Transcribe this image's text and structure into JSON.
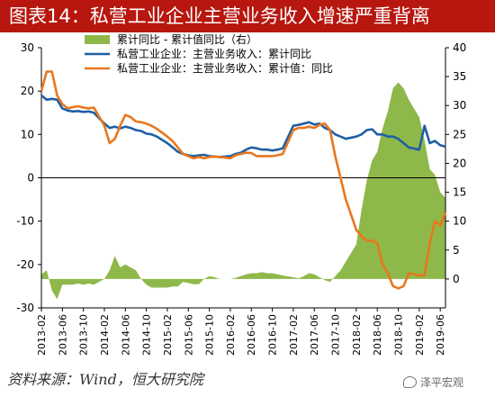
{
  "title": "图表14：私营工业企业主营业务收入增速严重背离",
  "source": "资料来源：Wind，恒大研究院",
  "watermark": "泽平宏观",
  "chart_data": {
    "type": "line",
    "title": "图表14：私营工业企业主营业务收入增速严重背离",
    "left_axis": {
      "ylim": [
        -30,
        30
      ],
      "ticks": [
        -30,
        -20,
        -10,
        0,
        10,
        20,
        30
      ]
    },
    "right_axis": {
      "ylim": [
        -5,
        40
      ],
      "ticks": [
        0,
        5,
        10,
        15,
        20,
        25,
        30,
        35,
        40
      ]
    },
    "x_tick_labels": [
      "2013-02",
      "2013-06",
      "2013-10",
      "2014-02",
      "2014-06",
      "2014-10",
      "2015-02",
      "2015-06",
      "2015-10",
      "2016-02",
      "2016-06",
      "2016-10",
      "2017-02",
      "2017-06",
      "2017-10",
      "2018-02",
      "2018-06",
      "2018-10",
      "2019-02",
      "2019-06"
    ],
    "x_start": "2013-02",
    "x_end": "2019-07",
    "series": [
      {
        "name": "累计同比 - 累计值同比（右）",
        "kind": "area",
        "axis": "right",
        "color": "#8fb84a",
        "points": [
          [
            "2013-02",
            0.8
          ],
          [
            "2013-03",
            1.5
          ],
          [
            "2013-04",
            -2
          ],
          [
            "2013-05",
            -3.5
          ],
          [
            "2013-06",
            -1
          ],
          [
            "2013-07",
            -1
          ],
          [
            "2013-08",
            -1
          ],
          [
            "2013-09",
            -0.8
          ],
          [
            "2013-10",
            -1
          ],
          [
            "2013-11",
            -0.8
          ],
          [
            "2013-12",
            -1
          ],
          [
            "2014-02",
            0
          ],
          [
            "2014-03",
            1.5
          ],
          [
            "2014-04",
            4
          ],
          [
            "2014-05",
            2
          ],
          [
            "2014-06",
            2.5
          ],
          [
            "2014-07",
            2
          ],
          [
            "2014-08",
            1.5
          ],
          [
            "2014-09",
            0
          ],
          [
            "2014-10",
            -1
          ],
          [
            "2014-11",
            -1.5
          ],
          [
            "2014-12",
            -1.5
          ],
          [
            "2015-02",
            -1.5
          ],
          [
            "2015-03",
            -1.3
          ],
          [
            "2015-04",
            -1.3
          ],
          [
            "2015-05",
            -0.5
          ],
          [
            "2015-06",
            -0.7
          ],
          [
            "2015-07",
            -0.9
          ],
          [
            "2015-08",
            -0.9
          ],
          [
            "2015-09",
            0
          ],
          [
            "2015-10",
            0.5
          ],
          [
            "2015-11",
            0.3
          ],
          [
            "2015-12",
            0
          ],
          [
            "2016-02",
            0
          ],
          [
            "2016-03",
            0.2
          ],
          [
            "2016-04",
            0.5
          ],
          [
            "2016-05",
            0.8
          ],
          [
            "2016-06",
            1
          ],
          [
            "2016-07",
            1
          ],
          [
            "2016-08",
            1.2
          ],
          [
            "2016-09",
            1
          ],
          [
            "2016-10",
            1
          ],
          [
            "2016-11",
            0.8
          ],
          [
            "2016-12",
            0.6
          ],
          [
            "2017-02",
            0.3
          ],
          [
            "2017-03",
            0.1
          ],
          [
            "2017-04",
            0.5
          ],
          [
            "2017-05",
            1
          ],
          [
            "2017-06",
            0.8
          ],
          [
            "2017-07",
            0.3
          ],
          [
            "2017-08",
            -0.2
          ],
          [
            "2017-09",
            -0.5
          ],
          [
            "2017-10",
            0.5
          ],
          [
            "2017-11",
            1.5
          ],
          [
            "2017-12",
            3
          ],
          [
            "2018-02",
            6
          ],
          [
            "2018-03",
            12
          ],
          [
            "2018-04",
            17
          ],
          [
            "2018-05",
            20.5
          ],
          [
            "2018-06",
            22
          ],
          [
            "2018-07",
            26
          ],
          [
            "2018-08",
            29
          ],
          [
            "2018-09",
            33
          ],
          [
            "2018-10",
            34
          ],
          [
            "2018-11",
            33
          ],
          [
            "2018-12",
            31
          ],
          [
            "2019-02",
            28
          ],
          [
            "2019-03",
            24
          ],
          [
            "2019-04",
            19
          ],
          [
            "2019-05",
            18
          ],
          [
            "2019-06",
            15
          ],
          [
            "2019-07",
            14
          ]
        ]
      },
      {
        "name": "私营工业企业：主营业务收入：累计同比",
        "kind": "line",
        "axis": "left",
        "color": "#1f5fa4",
        "points": [
          [
            "2013-02",
            19
          ],
          [
            "2013-03",
            18
          ],
          [
            "2013-04",
            18.2
          ],
          [
            "2013-05",
            18
          ],
          [
            "2013-06",
            16
          ],
          [
            "2013-07",
            15.5
          ],
          [
            "2013-08",
            15.3
          ],
          [
            "2013-09",
            15.4
          ],
          [
            "2013-10",
            15.2
          ],
          [
            "2013-11",
            15.3
          ],
          [
            "2013-12",
            15
          ],
          [
            "2014-02",
            12.5
          ],
          [
            "2014-03",
            11.5
          ],
          [
            "2014-04",
            11.8
          ],
          [
            "2014-05",
            11.4
          ],
          [
            "2014-06",
            11.8
          ],
          [
            "2014-07",
            11.5
          ],
          [
            "2014-08",
            11
          ],
          [
            "2014-09",
            10.8
          ],
          [
            "2014-10",
            10.2
          ],
          [
            "2014-11",
            10
          ],
          [
            "2014-12",
            9.5
          ],
          [
            "2015-02",
            8
          ],
          [
            "2015-03",
            7
          ],
          [
            "2015-04",
            6
          ],
          [
            "2015-05",
            5.5
          ],
          [
            "2015-06",
            5.2
          ],
          [
            "2015-07",
            5
          ],
          [
            "2015-08",
            5.2
          ],
          [
            "2015-09",
            5.3
          ],
          [
            "2015-10",
            5
          ],
          [
            "2015-11",
            4.9
          ],
          [
            "2015-12",
            4.8
          ],
          [
            "2016-02",
            5
          ],
          [
            "2016-03",
            5.5
          ],
          [
            "2016-04",
            5.8
          ],
          [
            "2016-05",
            6.5
          ],
          [
            "2016-06",
            7
          ],
          [
            "2016-07",
            6.8
          ],
          [
            "2016-08",
            6.5
          ],
          [
            "2016-09",
            6.5
          ],
          [
            "2016-10",
            6.3
          ],
          [
            "2016-11",
            6.5
          ],
          [
            "2016-12",
            6.8
          ],
          [
            "2017-02",
            12
          ],
          [
            "2017-03",
            12.2
          ],
          [
            "2017-04",
            12.5
          ],
          [
            "2017-05",
            12.8
          ],
          [
            "2017-06",
            12.3
          ],
          [
            "2017-07",
            12.5
          ],
          [
            "2017-08",
            11.5
          ],
          [
            "2017-09",
            11
          ],
          [
            "2017-10",
            10
          ],
          [
            "2017-11",
            9.5
          ],
          [
            "2017-12",
            9
          ],
          [
            "2018-02",
            9.5
          ],
          [
            "2018-03",
            10
          ],
          [
            "2018-04",
            11
          ],
          [
            "2018-05",
            11.2
          ],
          [
            "2018-06",
            10
          ],
          [
            "2018-07",
            10
          ],
          [
            "2018-08",
            9.5
          ],
          [
            "2018-09",
            9.5
          ],
          [
            "2018-10",
            9
          ],
          [
            "2018-11",
            8
          ],
          [
            "2018-12",
            7
          ],
          [
            "2019-02",
            6.5
          ],
          [
            "2019-03",
            12
          ],
          [
            "2019-04",
            8
          ],
          [
            "2019-05",
            8.5
          ],
          [
            "2019-06",
            7.5
          ],
          [
            "2019-07",
            7.2
          ]
        ]
      },
      {
        "name": "私营工业企业：主营业务收入：累计值：同比",
        "kind": "line",
        "axis": "left",
        "color": "#e8771e",
        "points": [
          [
            "2013-02",
            20
          ],
          [
            "2013-03",
            24.5
          ],
          [
            "2013-04",
            24.5
          ],
          [
            "2013-05",
            19
          ],
          [
            "2013-06",
            17
          ],
          [
            "2013-07",
            16
          ],
          [
            "2013-08",
            16.3
          ],
          [
            "2013-09",
            16.5
          ],
          [
            "2013-10",
            16.2
          ],
          [
            "2013-11",
            16
          ],
          [
            "2013-12",
            16.2
          ],
          [
            "2014-02",
            12
          ],
          [
            "2014-03",
            8
          ],
          [
            "2014-04",
            9
          ],
          [
            "2014-05",
            12
          ],
          [
            "2014-06",
            14.5
          ],
          [
            "2014-07",
            14
          ],
          [
            "2014-08",
            13
          ],
          [
            "2014-09",
            12.8
          ],
          [
            "2014-10",
            12.5
          ],
          [
            "2014-11",
            12
          ],
          [
            "2014-12",
            11.3
          ],
          [
            "2015-02",
            9.5
          ],
          [
            "2015-03",
            8.5
          ],
          [
            "2015-04",
            7
          ],
          [
            "2015-05",
            5.5
          ],
          [
            "2015-06",
            5
          ],
          [
            "2015-07",
            4.5
          ],
          [
            "2015-08",
            4.8
          ],
          [
            "2015-09",
            4.5
          ],
          [
            "2015-10",
            4.8
          ],
          [
            "2015-11",
            4.9
          ],
          [
            "2015-12",
            4.8
          ],
          [
            "2016-02",
            4.5
          ],
          [
            "2016-03",
            5.2
          ],
          [
            "2016-04",
            5.5
          ],
          [
            "2016-05",
            5.8
          ],
          [
            "2016-06",
            5.7
          ],
          [
            "2016-07",
            5
          ],
          [
            "2016-08",
            5
          ],
          [
            "2016-09",
            5
          ],
          [
            "2016-10",
            5
          ],
          [
            "2016-11",
            5.2
          ],
          [
            "2016-12",
            5.5
          ],
          [
            "2017-02",
            11
          ],
          [
            "2017-03",
            11.5
          ],
          [
            "2017-04",
            11.5
          ],
          [
            "2017-05",
            11.8
          ],
          [
            "2017-06",
            11.5
          ],
          [
            "2017-07",
            12.2
          ],
          [
            "2017-08",
            12.5
          ],
          [
            "2017-09",
            11
          ],
          [
            "2017-10",
            5
          ],
          [
            "2017-11",
            0
          ],
          [
            "2017-12",
            -5
          ],
          [
            "2018-02",
            -12
          ],
          [
            "2018-03",
            -13.5
          ],
          [
            "2018-04",
            -14.5
          ],
          [
            "2018-05",
            -14.5
          ],
          [
            "2018-06",
            -15
          ],
          [
            "2018-07",
            -20
          ],
          [
            "2018-08",
            -22
          ],
          [
            "2018-09",
            -25
          ],
          [
            "2018-10",
            -25.5
          ],
          [
            "2018-11",
            -25
          ],
          [
            "2018-12",
            -22
          ],
          [
            "2019-02",
            -22.5
          ],
          [
            "2019-03",
            -22.5
          ],
          [
            "2019-04",
            -15
          ],
          [
            "2019-05",
            -10
          ],
          [
            "2019-06",
            -11
          ],
          [
            "2019-07",
            -8
          ]
        ]
      }
    ],
    "legend_position": "top",
    "grid": false
  }
}
